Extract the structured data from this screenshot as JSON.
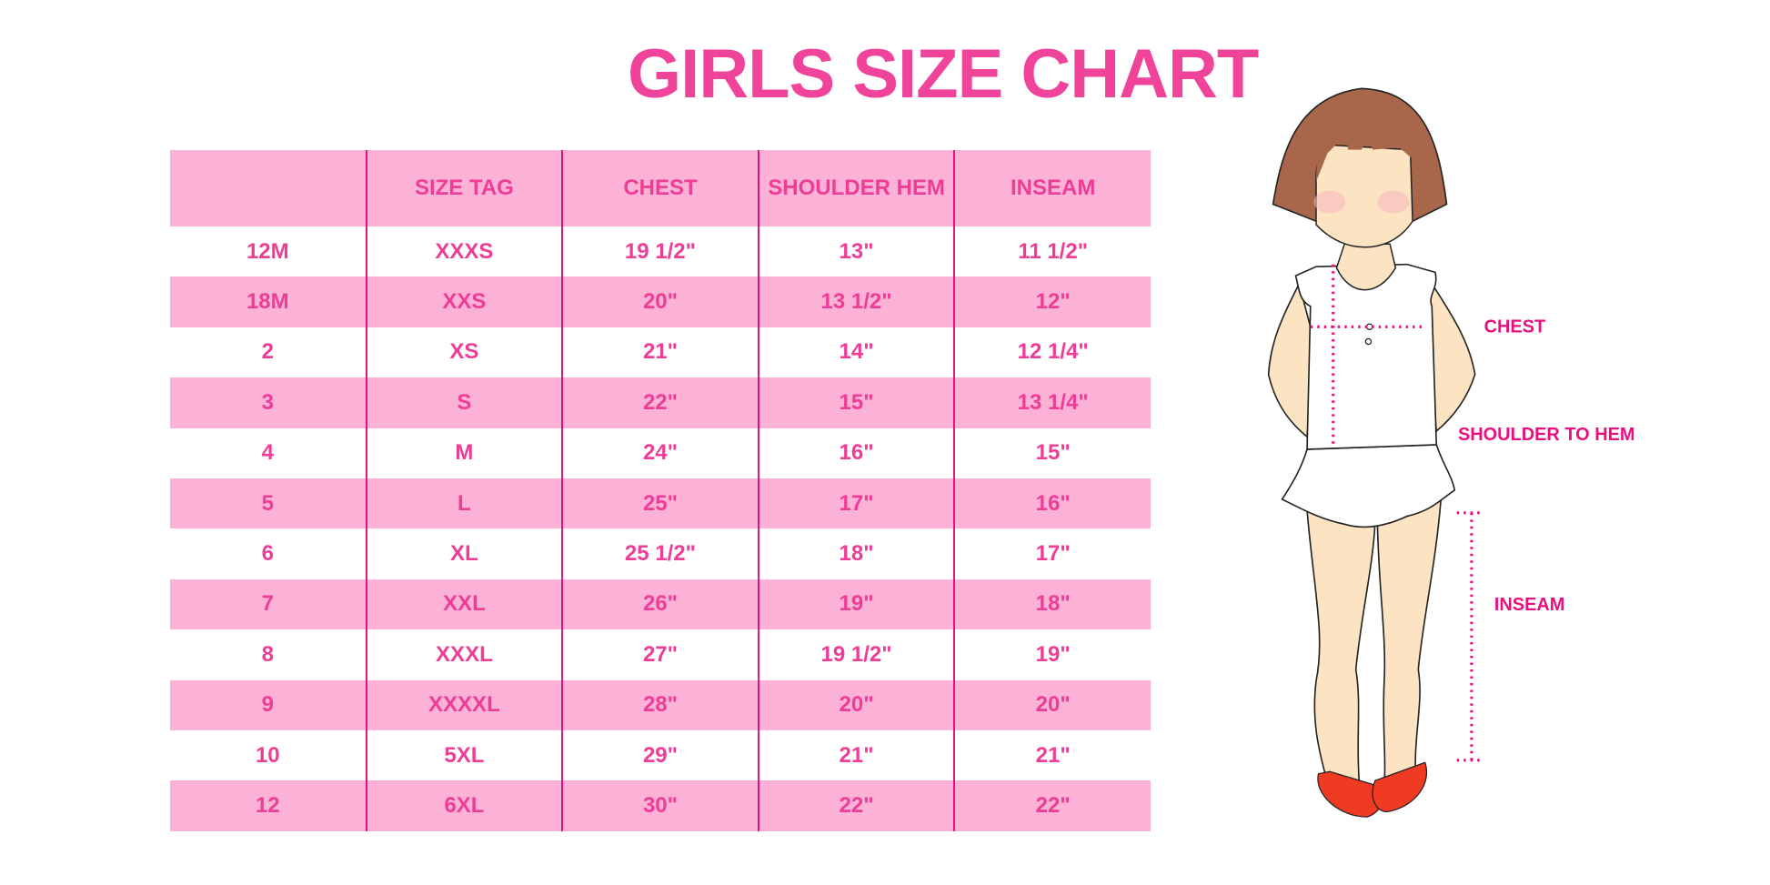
{
  "title": "GIRLS SIZE CHART",
  "colors": {
    "title": "#f0449a",
    "text": "#ee3d96",
    "header_bg": "#fcb1d6",
    "stripe_bg": "#fcb1d6",
    "divider": "#e0157f",
    "label": "#e8107e",
    "hair": "#a8664a",
    "skin": "#fce4c2",
    "shoes": "#ee3b22"
  },
  "table": {
    "columns": [
      "",
      "SIZE TAG",
      "CHEST",
      "SHOULDER HEM",
      "INSEAM"
    ],
    "rows": [
      [
        "12M",
        "XXXS",
        "19 1/2\"",
        "13\"",
        "11 1/2\""
      ],
      [
        "18M",
        "XXS",
        "20\"",
        "13 1/2\"",
        "12\""
      ],
      [
        "2",
        "XS",
        "21\"",
        "14\"",
        "12 1/4\""
      ],
      [
        "3",
        "S",
        "22\"",
        "15\"",
        "13 1/4\""
      ],
      [
        "4",
        "M",
        "24\"",
        "16\"",
        "15\""
      ],
      [
        "5",
        "L",
        "25\"",
        "17\"",
        "16\""
      ],
      [
        "6",
        "XL",
        "25 1/2\"",
        "18\"",
        "17\""
      ],
      [
        "7",
        "XXL",
        "26\"",
        "19\"",
        "18\""
      ],
      [
        "8",
        "XXXL",
        "27\"",
        "19 1/2\"",
        "19\""
      ],
      [
        "9",
        "XXXXL",
        "28\"",
        "20\"",
        "20\""
      ],
      [
        "10",
        "5XL",
        "29\"",
        "21\"",
        "21\""
      ],
      [
        "12",
        "6XL",
        "30\"",
        "22\"",
        "22\""
      ]
    ]
  },
  "figure": {
    "labels": {
      "chest": "CHEST",
      "shoulder_to_hem": "SHOULDER TO HEM",
      "inseam": "INSEAM"
    }
  }
}
